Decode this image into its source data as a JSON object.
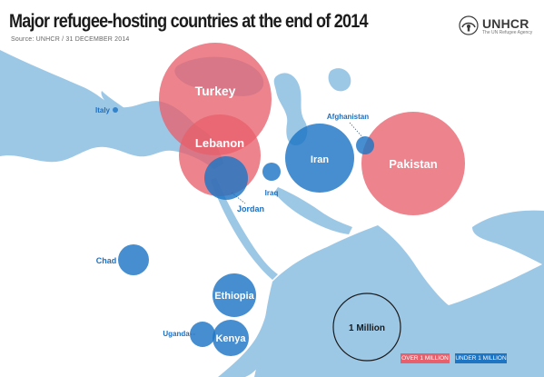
{
  "title": "Major refugee-hosting countries at the end of 2014",
  "source": "Source: UNHCR / 31 DECEMBER 2014",
  "logo": {
    "name": "UNHCR",
    "tagline": "The UN Refugee Agency",
    "icon": "unhcr-emblem-icon"
  },
  "colors": {
    "sea": "#9cc8e6",
    "land": "#ffffff",
    "over": "#e8606c",
    "under": "#1d75c4",
    "label_under": "#1d6fbf",
    "label_over": "#ffffff"
  },
  "legend": {
    "over_label": "OVER 1 MILLION",
    "under_label": "UNDER 1 MILLION",
    "scale_label": "1 Million"
  },
  "chart_data": {
    "type": "bubble-map",
    "title": "Major refugee-hosting countries at the end of 2014",
    "categories": [
      "Over 1 million",
      "Under 1 million"
    ],
    "countries": [
      {
        "name": "Turkey",
        "category": "Over 1 million"
      },
      {
        "name": "Lebanon",
        "category": "Over 1 million"
      },
      {
        "name": "Pakistan",
        "category": "Over 1 million"
      },
      {
        "name": "Iran",
        "category": "Under 1 million"
      },
      {
        "name": "Jordan",
        "category": "Under 1 million"
      },
      {
        "name": "Ethiopia",
        "category": "Under 1 million"
      },
      {
        "name": "Kenya",
        "category": "Under 1 million"
      },
      {
        "name": "Chad",
        "category": "Under 1 million"
      },
      {
        "name": "Uganda",
        "category": "Under 1 million"
      },
      {
        "name": "Italy",
        "category": "Under 1 million"
      },
      {
        "name": "Afghanistan",
        "category": "Under 1 million"
      },
      {
        "name": "Iraq",
        "category": "Under 1 million"
      }
    ]
  }
}
